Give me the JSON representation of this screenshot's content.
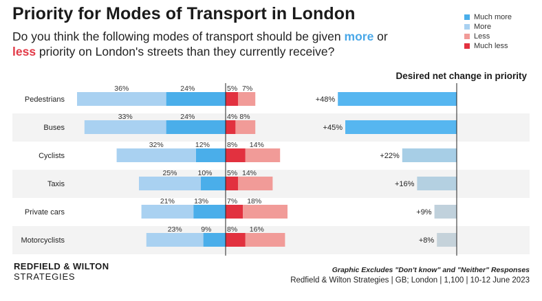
{
  "title": "Priority for Modes of Transport in London",
  "subtitle": {
    "part1": "Do you think the following modes of transport should be given ",
    "more": "more",
    "part2": " or ",
    "less": "less",
    "part3": " priority on London's streets than they currently receive?"
  },
  "legend": [
    {
      "label": "Much more",
      "color": "#4aaeea"
    },
    {
      "label": "More",
      "color": "#a9d1f1"
    },
    {
      "label": "Less",
      "color": "#f19b98"
    },
    {
      "label": "Much less",
      "color": "#e2313f"
    }
  ],
  "net_heading": "Desired net change in priority",
  "brand": {
    "line1": "REDFIELD & WILTON",
    "line2": "STRATEGIES"
  },
  "footnote": {
    "line1": "Graphic Excludes \"Don't know\" and \"Neither\" Responses",
    "line2": "Redfield & Wilton Strategies | GB; London | 1,100 | 10-12 June 2023"
  },
  "chart_data": [
    {
      "type": "bar",
      "subtype": "diverging-stacked",
      "categories": [
        "Pedestrians",
        "Buses",
        "Cyclists",
        "Taxis",
        "Private cars",
        "Motorcyclists"
      ],
      "series": [
        {
          "name": "Much more",
          "values": [
            24,
            24,
            12,
            10,
            13,
            9
          ],
          "color": "#4aaeea"
        },
        {
          "name": "More",
          "values": [
            36,
            33,
            32,
            25,
            21,
            23
          ],
          "color": "#a9d1f1"
        },
        {
          "name": "Less",
          "values": [
            7,
            8,
            14,
            14,
            18,
            16
          ],
          "color": "#f19b98"
        },
        {
          "name": "Much less",
          "values": [
            5,
            4,
            8,
            5,
            7,
            8
          ],
          "color": "#e2313f"
        }
      ],
      "value_suffix": "%"
    },
    {
      "type": "bar",
      "subtype": "horizontal",
      "title": "Desired net change in priority",
      "categories": [
        "Pedestrians",
        "Buses",
        "Cyclists",
        "Taxis",
        "Private cars",
        "Motorcyclists"
      ],
      "values": [
        48,
        45,
        22,
        16,
        9,
        8
      ],
      "labels": [
        "+48%",
        "+45%",
        "+22%",
        "+16%",
        "+9%",
        "+8%"
      ],
      "colors": [
        "#56b6f0",
        "#56b6f0",
        "#a7cee6",
        "#b4d0e1",
        "#c0d1dc",
        "#c5d2da"
      ]
    }
  ]
}
